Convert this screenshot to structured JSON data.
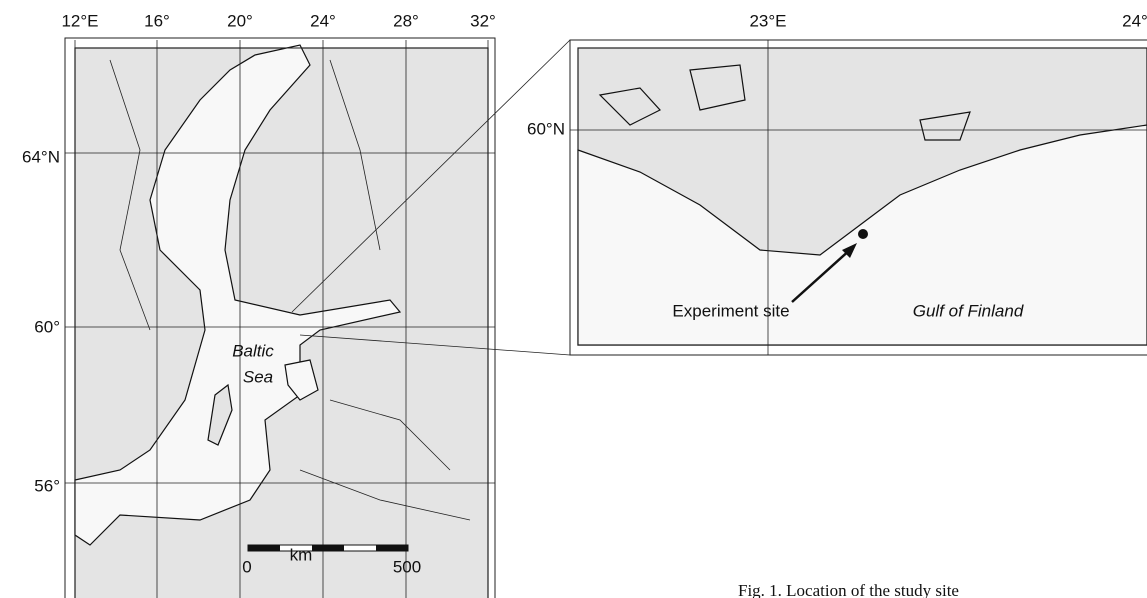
{
  "left_map": {
    "lon_labels": [
      "12°E",
      "16°",
      "20°",
      "24°",
      "28°",
      "32°"
    ],
    "lat_labels": [
      "64°N",
      "60°",
      "56°"
    ],
    "sea_labels": [
      "Baltic",
      "Sea"
    ],
    "scale_bar": {
      "unit": "km",
      "labels": [
        "0",
        "500"
      ]
    }
  },
  "right_map": {
    "lon_labels": [
      "23°E",
      "24°"
    ],
    "lat_labels": [
      "60°N"
    ],
    "site_label": "Experiment site",
    "sea_label": "Gulf of Finland"
  },
  "caption": "Fig. 1. Location of the study site"
}
